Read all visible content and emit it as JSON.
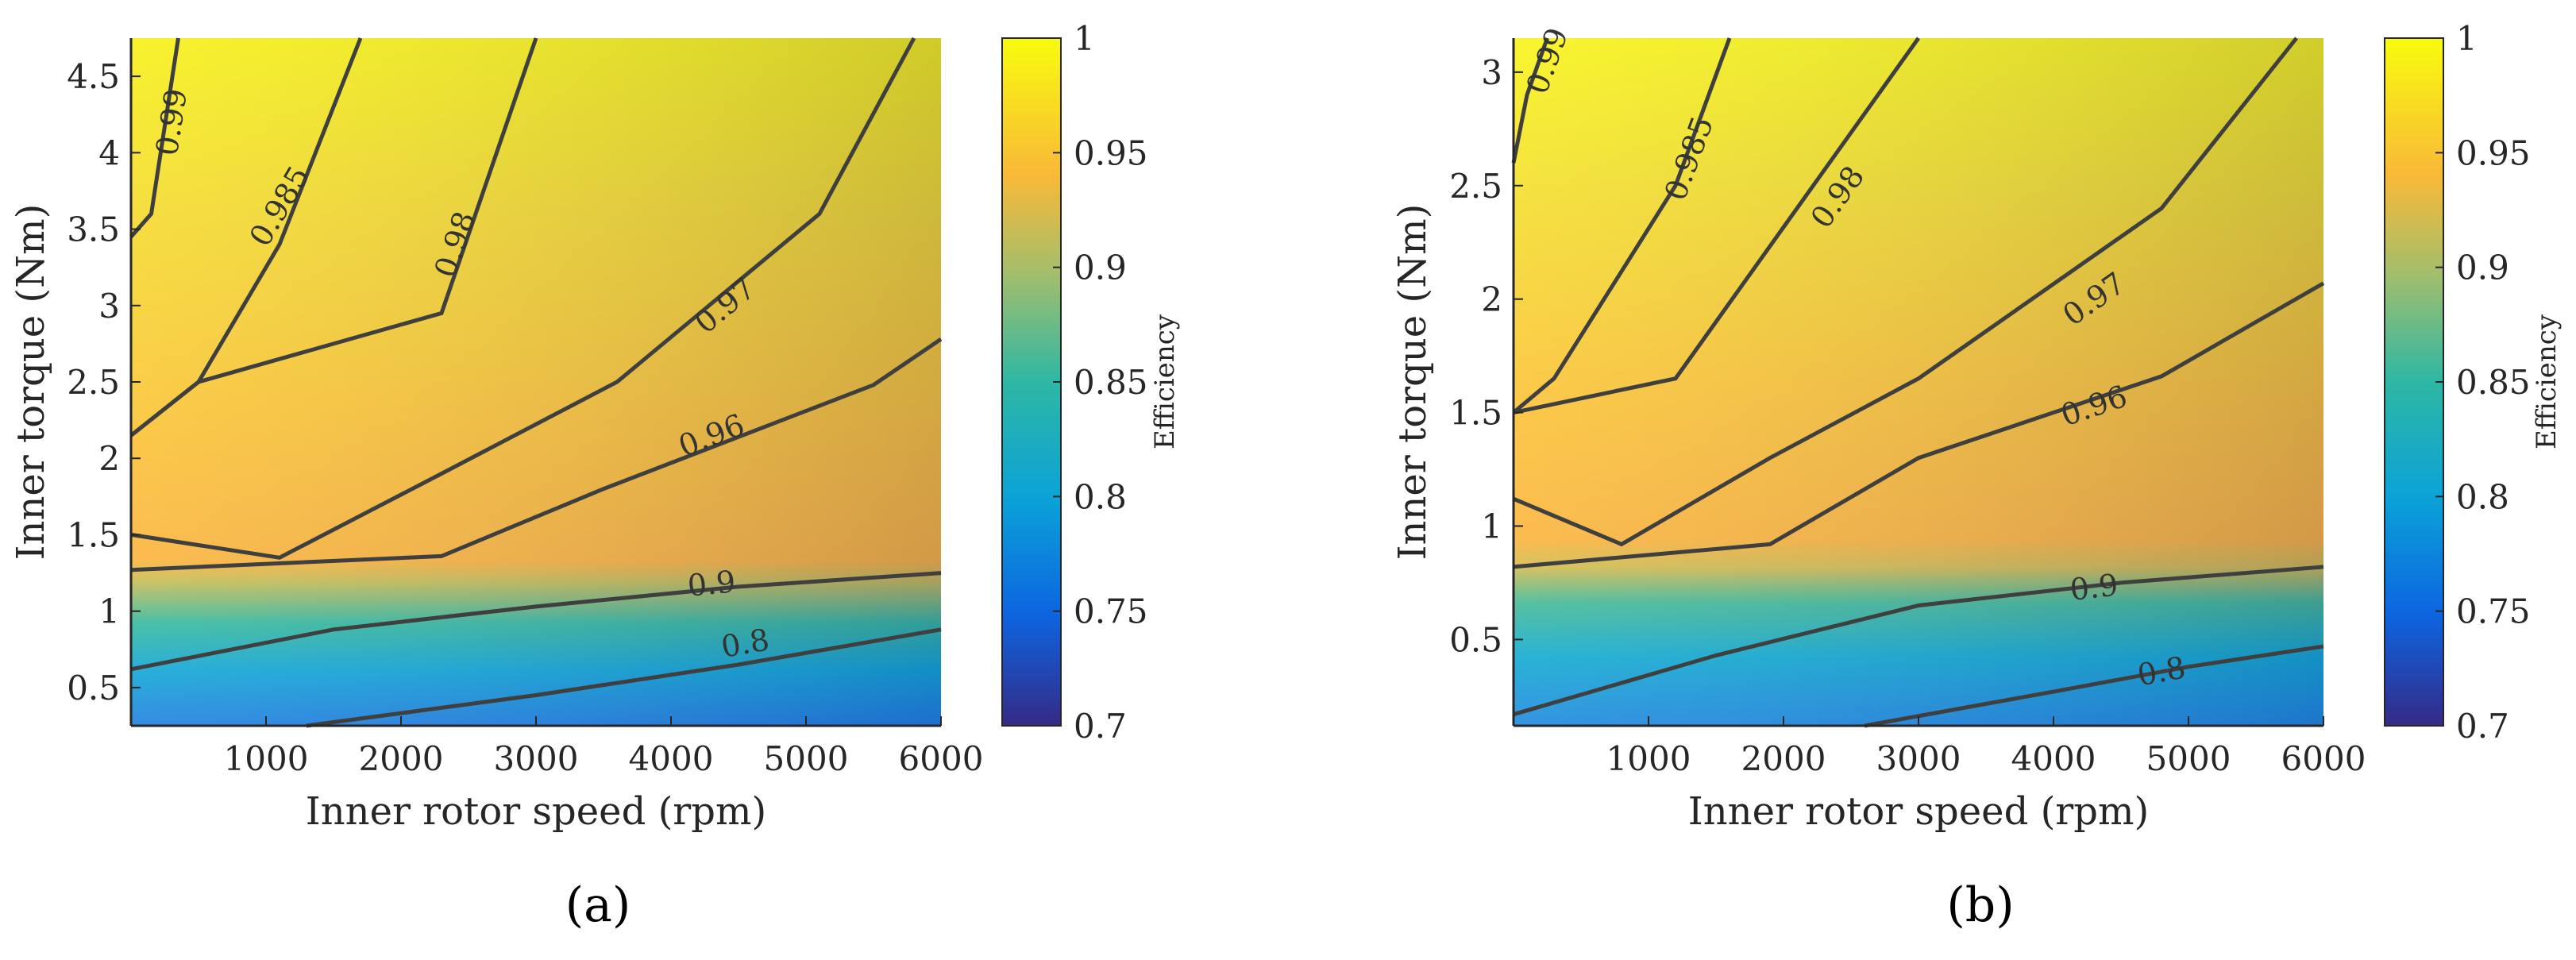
{
  "chart_data": [
    {
      "type": "heatmap",
      "panel_label": "(a)",
      "xlabel": "Inner rotor speed (rpm)",
      "ylabel": "Inner torque (Nm)",
      "xlim": [
        0,
        6000
      ],
      "ylim": [
        0.25,
        4.75
      ],
      "xticks": [
        "1000",
        "2000",
        "3000",
        "4000",
        "5000",
        "6000"
      ],
      "yticks": [
        "0.5",
        "1",
        "1.5",
        "2",
        "2.5",
        "3",
        "3.5",
        "4",
        "4.5"
      ],
      "colorbar": {
        "label": "Efficiency",
        "range": [
          0.7,
          1
        ],
        "ticks": [
          "0.7",
          "0.75",
          "0.8",
          "0.85",
          "0.9",
          "0.95",
          "1"
        ]
      },
      "contours": [
        {
          "level": "0.8",
          "points": [
            [
              1300,
              0.25
            ],
            [
              3000,
              0.45
            ],
            [
              4500,
              0.65
            ],
            [
              6000,
              0.88
            ]
          ],
          "label_at": [
            4550,
            0.79
          ]
        },
        {
          "level": "0.9",
          "points": [
            [
              0,
              0.62
            ],
            [
              1500,
              0.88
            ],
            [
              3000,
              1.03
            ],
            [
              4500,
              1.16
            ],
            [
              6000,
              1.25
            ]
          ],
          "label_at": [
            4300,
            1.18
          ]
        },
        {
          "level": "0.96",
          "points": [
            [
              0,
              1.27
            ],
            [
              2300,
              1.36
            ],
            [
              3500,
              1.8
            ],
            [
              5500,
              2.48
            ],
            [
              6000,
              2.78
            ]
          ],
          "label_at": [
            4300,
            2.15
          ]
        },
        {
          "level": "0.97",
          "points": [
            [
              0,
              1.5
            ],
            [
              1100,
              1.35
            ],
            [
              2300,
              1.9
            ],
            [
              3600,
              2.5
            ],
            [
              5100,
              3.6
            ],
            [
              5800,
              4.75
            ]
          ],
          "label_at": [
            4400,
            3.0
          ]
        },
        {
          "level": "0.98",
          "points": [
            [
              0,
              2.15
            ],
            [
              500,
              2.5
            ],
            [
              2300,
              2.95
            ],
            [
              3000,
              4.75
            ]
          ],
          "label_at": [
            2400,
            3.4
          ]
        },
        {
          "level": "0.985",
          "points": [
            [
              0,
              2.15
            ],
            [
              500,
              2.5
            ],
            [
              1100,
              3.4
            ],
            [
              1700,
              4.75
            ]
          ],
          "label_at": [
            1100,
            3.65
          ]
        },
        {
          "level": "0.99",
          "points": [
            [
              0,
              3.45
            ],
            [
              150,
              3.6
            ],
            [
              350,
              4.75
            ]
          ],
          "label_at": [
            300,
            4.2
          ]
        }
      ]
    },
    {
      "type": "heatmap",
      "panel_label": "(b)",
      "xlabel": "Inner rotor speed (rpm)",
      "ylabel": "Inner torque (Nm)",
      "xlim": [
        0,
        6000
      ],
      "ylim": [
        0.12,
        3.15
      ],
      "xticks": [
        "1000",
        "2000",
        "3000",
        "4000",
        "5000",
        "6000"
      ],
      "yticks": [
        "0.5",
        "1",
        "1.5",
        "2",
        "2.5",
        "3"
      ],
      "colorbar": {
        "label": "Efficiency",
        "range": [
          0.7,
          1
        ],
        "ticks": [
          "0.7",
          "0.75",
          "0.8",
          "0.85",
          "0.9",
          "0.95",
          "1"
        ]
      },
      "contours": [
        {
          "level": "0.8",
          "points": [
            [
              2600,
              0.12
            ],
            [
              4000,
              0.27
            ],
            [
              5000,
              0.38
            ],
            [
              6000,
              0.47
            ]
          ],
          "label_at": [
            4800,
            0.36
          ]
        },
        {
          "level": "0.9",
          "points": [
            [
              0,
              0.17
            ],
            [
              1500,
              0.43
            ],
            [
              3000,
              0.65
            ],
            [
              4500,
              0.75
            ],
            [
              6000,
              0.82
            ]
          ],
          "label_at": [
            4300,
            0.73
          ]
        },
        {
          "level": "0.96",
          "points": [
            [
              0,
              0.82
            ],
            [
              1900,
              0.92
            ],
            [
              3000,
              1.3
            ],
            [
              4800,
              1.66
            ],
            [
              6000,
              2.07
            ]
          ],
          "label_at": [
            4300,
            1.53
          ]
        },
        {
          "level": "0.97",
          "points": [
            [
              0,
              1.12
            ],
            [
              800,
              0.92
            ],
            [
              1900,
              1.3
            ],
            [
              3000,
              1.65
            ],
            [
              4800,
              2.4
            ],
            [
              5800,
              3.15
            ]
          ],
          "label_at": [
            4300,
            2.0
          ]
        },
        {
          "level": "0.98",
          "points": [
            [
              0,
              1.5
            ],
            [
              1200,
              1.65
            ],
            [
              3000,
              3.15
            ]
          ],
          "label_at": [
            2400,
            2.45
          ]
        },
        {
          "level": "0.985",
          "points": [
            [
              0,
              1.5
            ],
            [
              300,
              1.65
            ],
            [
              1200,
              2.5
            ],
            [
              1600,
              3.15
            ]
          ],
          "label_at": [
            1300,
            2.62
          ]
        },
        {
          "level": "0.99",
          "points": [
            [
              0,
              2.6
            ],
            [
              100,
              2.9
            ],
            [
              250,
              3.15
            ]
          ],
          "label_at": [
            250,
            3.05
          ]
        }
      ]
    }
  ]
}
